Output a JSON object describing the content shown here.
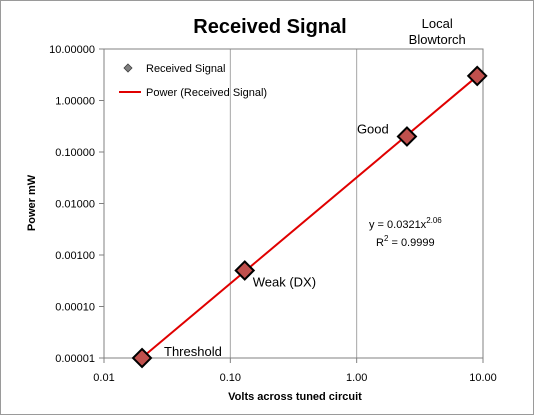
{
  "chart_data": {
    "type": "scatter",
    "title": "Received Signal",
    "xlabel": "Volts across  tuned circuit",
    "ylabel": "Power  mW",
    "x_scale": "log",
    "y_scale": "log",
    "xlim": [
      0.01,
      10
    ],
    "ylim": [
      1e-05,
      10
    ],
    "x_ticks": [
      {
        "value": 0.01,
        "label": "0.01"
      },
      {
        "value": 0.1,
        "label": "0.10"
      },
      {
        "value": 1,
        "label": "1.00"
      },
      {
        "value": 10,
        "label": "10.00"
      }
    ],
    "y_ticks": [
      {
        "value": 1e-05,
        "label": "0.00001"
      },
      {
        "value": 0.0001,
        "label": "0.00010"
      },
      {
        "value": 0.001,
        "label": "0.00100"
      },
      {
        "value": 0.01,
        "label": "0.01000"
      },
      {
        "value": 0.1,
        "label": "0.10000"
      },
      {
        "value": 1,
        "label": "1.00000"
      },
      {
        "value": 10,
        "label": "10.00000"
      }
    ],
    "grid": "vertical",
    "series": [
      {
        "name": "Received Signal",
        "type": "scatter",
        "color": "#c0504d",
        "points": [
          {
            "x": 0.02,
            "y": 1e-05,
            "label": "Threshold"
          },
          {
            "x": 0.13,
            "y": 0.0005,
            "label": "Weak (DX)"
          },
          {
            "x": 2.5,
            "y": 0.2,
            "label": "Good"
          },
          {
            "x": 9.0,
            "y": 3.0,
            "label_lines": [
              "Local",
              "Blowtorch"
            ]
          }
        ]
      },
      {
        "name": "Power (Received Signal)",
        "type": "trendline",
        "color": "#e00000",
        "equation": "power",
        "coefficient": 0.0321,
        "exponent": 2.06,
        "x_range": [
          0.02,
          9.0
        ]
      }
    ],
    "equation_text": {
      "prefix": "y = 0.0321x",
      "exponent": "2.06",
      "r2_prefix": "R",
      "r2_sup": "2",
      "r2_suffix": " = 0.9999"
    },
    "legend": {
      "placement": "top-left"
    }
  }
}
